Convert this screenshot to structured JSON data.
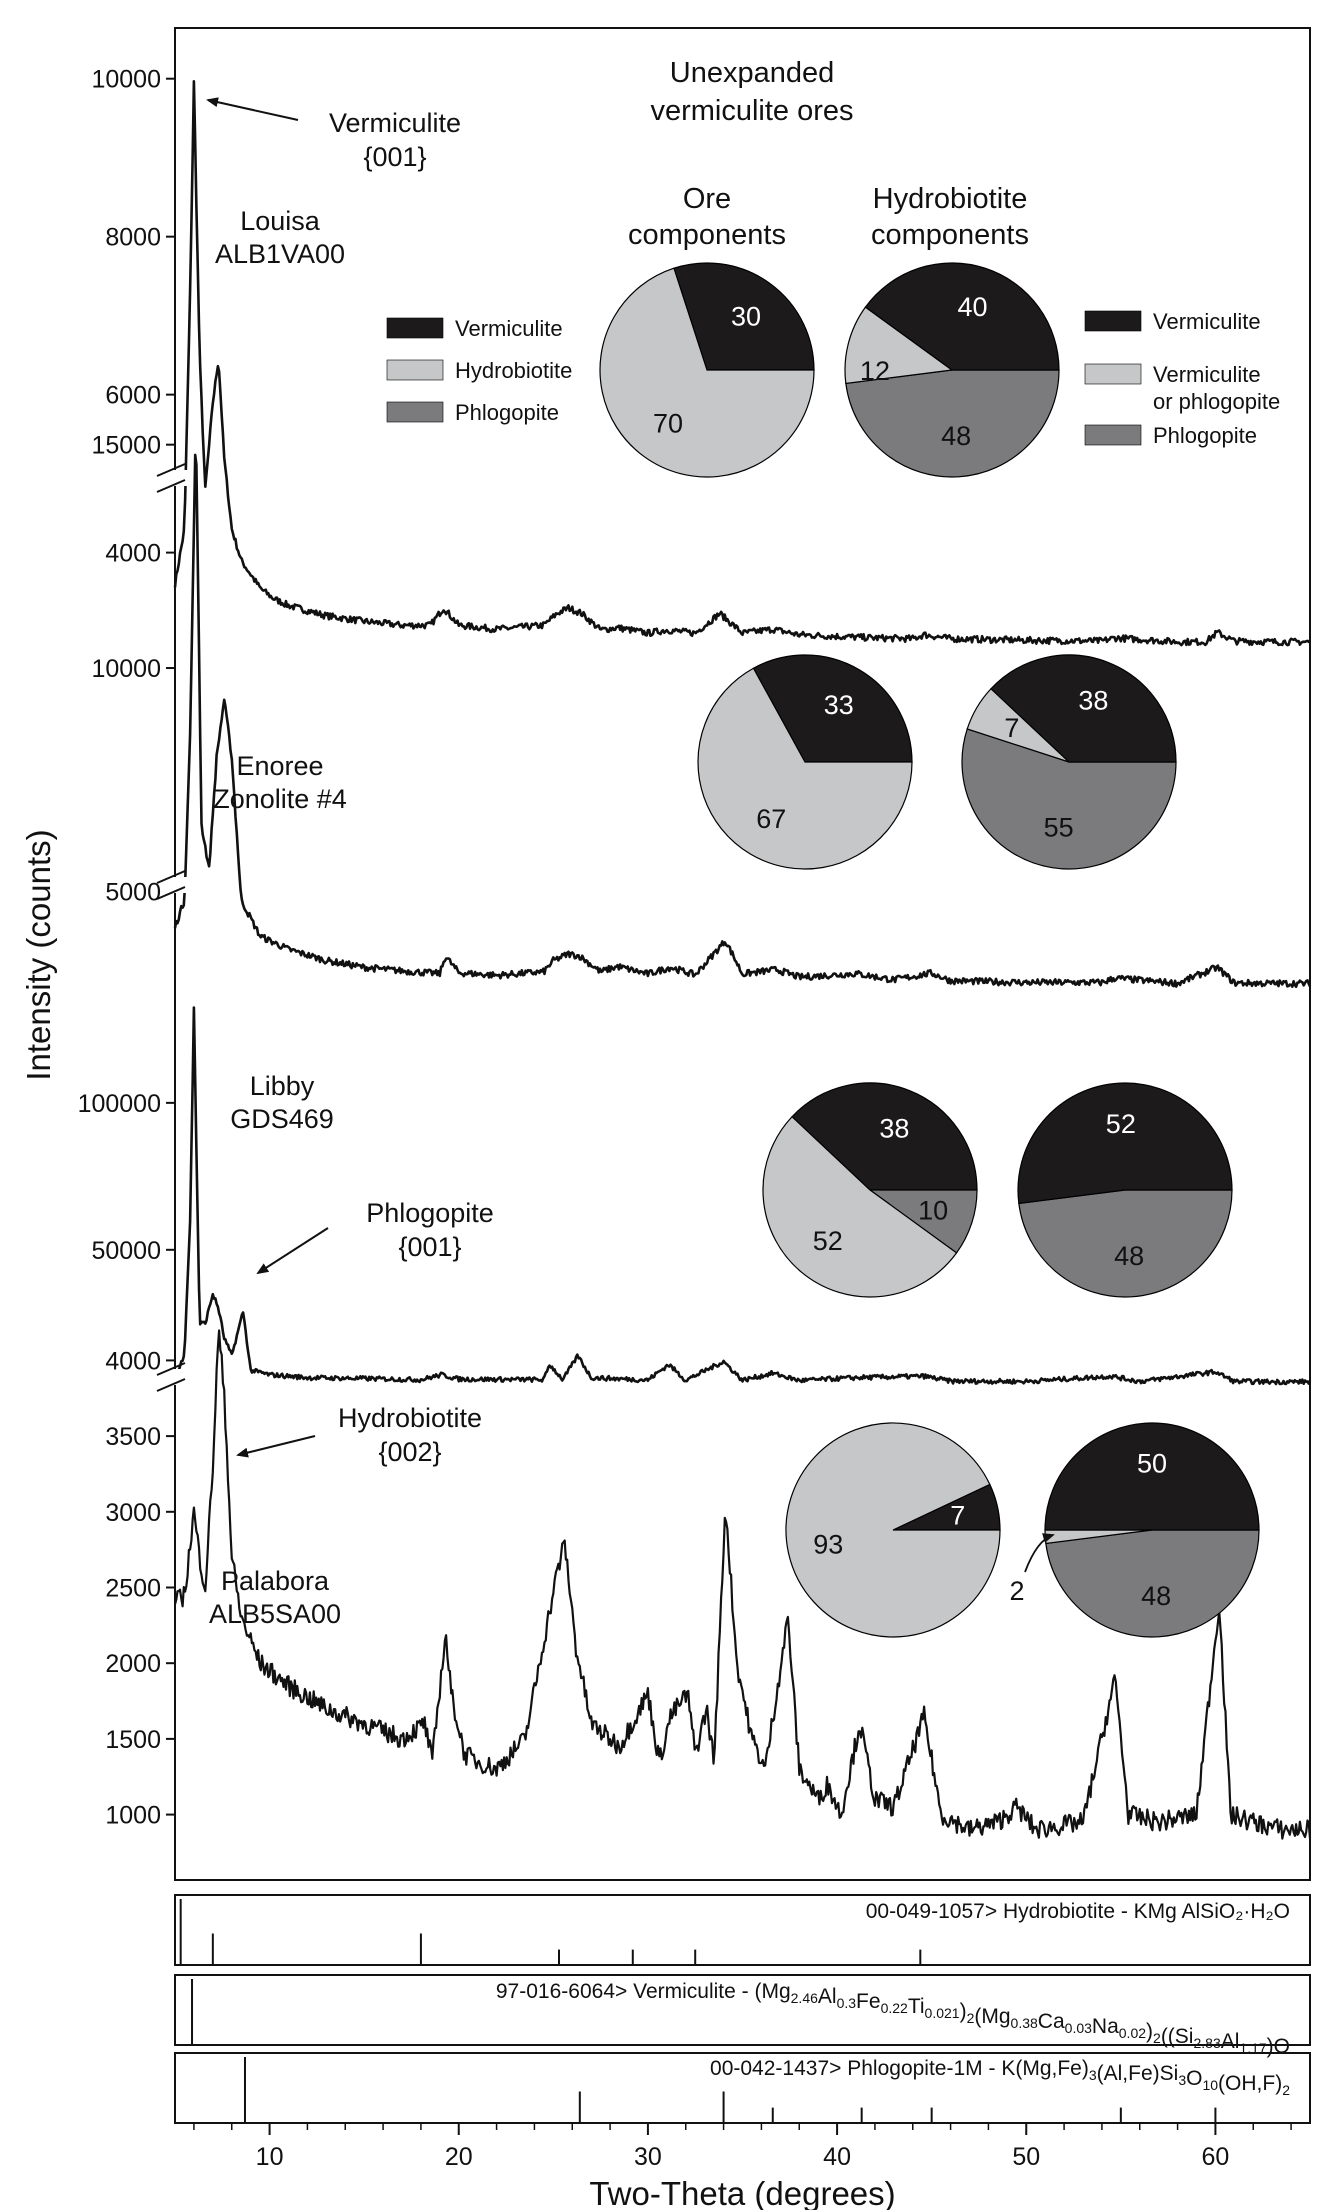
{
  "title": [
    "Unexpanded",
    "vermiculite ores"
  ],
  "colors": {
    "vermiculite": "#1c1a1b",
    "hydrobiotite": "#c6c7c9",
    "phlogopite": "#7b7b7d",
    "line": "#111111"
  },
  "chart_data": {
    "type": "line",
    "xlabel": "Two-Theta (degrees)",
    "ylabel": "Intensity (counts)",
    "xlim": [
      5,
      65
    ],
    "xticks": [
      10,
      20,
      30,
      40,
      50,
      60
    ],
    "panels": [
      {
        "name": "Louisa ALB1VA00",
        "label": [
          "Louisa",
          "ALB1VA00"
        ],
        "ylim": [
          3400,
          10300
        ],
        "yticks": [
          4000,
          6000,
          8000,
          10000
        ],
        "x": [
          5,
          5.5,
          5.8,
          6.0,
          6.3,
          6.6,
          7.0,
          7.3,
          7.6,
          8.0,
          8.5,
          9.5,
          10.2,
          11,
          13,
          15,
          17,
          18.5,
          19.2,
          20,
          22,
          24.5,
          25.2,
          25.8,
          26.5,
          27.5,
          28.4,
          30,
          31,
          32.5,
          33.8,
          35,
          36.6,
          38,
          40,
          42,
          44,
          44.6,
          46,
          50,
          54,
          54.7,
          58,
          59.5,
          60.1,
          61,
          63,
          65
        ],
        "y": [
          3600,
          4300,
          7300,
          9950,
          6500,
          4800,
          5900,
          6450,
          5200,
          4300,
          3900,
          3550,
          3420,
          3330,
          3200,
          3130,
          3080,
          3080,
          3300,
          3080,
          3030,
          3080,
          3230,
          3300,
          3230,
          3020,
          3050,
          2980,
          3020,
          2980,
          3230,
          2980,
          3030,
          2960,
          2940,
          2920,
          2910,
          2960,
          2910,
          2890,
          2880,
          2920,
          2870,
          2870,
          2990,
          2880,
          2870,
          2870
        ]
      },
      {
        "name": "Enoree Zonolite #4",
        "label": [
          "Enoree",
          "Zonolite #4"
        ],
        "ylim": [
          3800,
          16000
        ],
        "yticks": [
          5000,
          10000,
          15000
        ],
        "x": [
          5,
          5.5,
          5.8,
          6.1,
          6.4,
          6.8,
          7.2,
          7.6,
          8.0,
          8.5,
          9.5,
          11,
          13,
          15,
          17,
          19,
          19.3,
          20,
          22,
          24.5,
          25,
          25.8,
          26.4,
          27.5,
          28.4,
          30,
          31.2,
          32.5,
          34.1,
          35,
          36.8,
          38,
          41,
          43,
          45,
          46,
          50,
          54,
          54.7,
          58,
          60.1,
          61,
          63,
          65
        ],
        "y": [
          4200,
          4800,
          8500,
          15500,
          6500,
          5500,
          8000,
          9300,
          8000,
          4800,
          4000,
          3700,
          3450,
          3300,
          3220,
          3160,
          3550,
          3180,
          3120,
          3200,
          3450,
          3600,
          3550,
          3200,
          3320,
          3150,
          3300,
          3130,
          3900,
          3150,
          3250,
          3080,
          3160,
          3020,
          3170,
          3000,
          2960,
          2960,
          3060,
          2940,
          3300,
          2950,
          2940,
          2940
        ]
      },
      {
        "name": "Libby GDS469",
        "label": [
          "Libby",
          "GDS469"
        ],
        "ylim": [
          4000,
          135000
        ],
        "yticks": [
          50000,
          100000
        ],
        "x": [
          5,
          5.5,
          5.8,
          6.0,
          6.3,
          6.6,
          7.0,
          7.3,
          7.6,
          8.0,
          8.6,
          9.0,
          10,
          12,
          15,
          18,
          19.1,
          20,
          24.5,
          24.8,
          25.5,
          26.3,
          27,
          30,
          31.1,
          32,
          34.0,
          35,
          36.6,
          38,
          41,
          44.6,
          46,
          50,
          54.5,
          56,
          60,
          61,
          63,
          65
        ],
        "y": [
          5000,
          15000,
          60000,
          132000,
          25000,
          25000,
          35000,
          30000,
          20000,
          14000,
          29000,
          9000,
          7500,
          6500,
          6200,
          5800,
          7500,
          6000,
          5800,
          11000,
          5800,
          14000,
          6500,
          5700,
          11000,
          5600,
          12000,
          5600,
          8000,
          5500,
          6500,
          7000,
          5300,
          5200,
          7000,
          5200,
          8500,
          5200,
          5100,
          5100
        ]
      },
      {
        "name": "Palabora ALB5SA00",
        "label": [
          "Palabora",
          "ALB5SA00"
        ],
        "ylim": [
          700,
          4300
        ],
        "yticks": [
          1000,
          1500,
          2000,
          2500,
          3000,
          3500,
          4000
        ],
        "x": [
          5,
          5.5,
          6.0,
          6.3,
          6.6,
          7.0,
          7.3,
          7.6,
          8.0,
          8.5,
          9.5,
          11,
          13,
          15,
          17,
          18.2,
          18.6,
          19.3,
          19.6,
          20.3,
          21,
          22,
          23.5,
          25.2,
          25.6,
          26.2,
          27,
          28.5,
          30.0,
          30.6,
          31.2,
          32.1,
          32.5,
          33.1,
          33.5,
          34.1,
          34.7,
          35.5,
          36.2,
          37.4,
          38,
          39,
          39.5,
          40.2,
          41.2,
          42,
          43,
          44.6,
          45.5,
          47,
          48.5,
          49.5,
          50.5,
          53,
          54.7,
          55.4,
          57,
          59,
          60.2,
          60.8,
          62,
          63.5,
          65
        ],
        "y": [
          2400,
          2450,
          3000,
          2700,
          2500,
          3300,
          4200,
          3800,
          2700,
          2300,
          2000,
          1850,
          1700,
          1600,
          1500,
          1600,
          1350,
          2200,
          1800,
          1400,
          1350,
          1300,
          1500,
          2600,
          2800,
          2100,
          1600,
          1450,
          1800,
          1350,
          1650,
          1800,
          1400,
          1700,
          1350,
          3050,
          2000,
          1500,
          1300,
          2300,
          1300,
          1100,
          1200,
          1000,
          1600,
          1100,
          1050,
          1650,
          1000,
          900,
          950,
          1050,
          900,
          950,
          1900,
          1000,
          950,
          1000,
          2400,
          1000,
          950,
          900,
          900
        ]
      }
    ],
    "references": [
      {
        "code": "00-049-1057>",
        "text": "Hydrobiotite - KMg AlSiO₂·H₂O",
        "x": [
          5.3,
          7.0,
          18.0,
          25.3,
          29.2,
          32.5,
          44.4
        ]
      },
      {
        "code": "97-016-6064>",
        "text": "Vermiculite - (Mg2.46Al0.3Fe0.22Ti0.021)2(Mg0.38Ca0.03Na0.02)2((Si2.83Al1.17)O",
        "x": [
          5.9
        ]
      },
      {
        "code": "00-042-1437>",
        "text": "Phlogopite-1M - K(Mg,Fe)3(Al,Fe)Si3O10(OH,F)2",
        "x": [
          8.7,
          26.4,
          34.0,
          36.6,
          41.3,
          45.0,
          55.0,
          60.0
        ]
      }
    ],
    "annotations": [
      {
        "text": [
          "Vermiculite",
          "{001}"
        ],
        "x": 6.0
      },
      {
        "text": [
          "Phlogopite",
          "{001}"
        ],
        "x": 8.7
      },
      {
        "text": [
          "Hydrobiotite",
          "{002}"
        ],
        "x": 7.3
      }
    ],
    "pies": [
      {
        "title": [
          "Ore",
          "components"
        ],
        "labels": [
          "Vermiculite",
          "Hydrobiotite",
          "Phlogopite"
        ],
        "samples": [
          {
            "values": [
              30,
              70,
              0
            ],
            "labels": [
              "30",
              "70",
              ""
            ]
          },
          {
            "values": [
              33,
              67,
              0
            ],
            "labels": [
              "33",
              "67",
              ""
            ]
          },
          {
            "values": [
              38,
              52,
              10
            ],
            "labels": [
              "38",
              "52",
              "10"
            ]
          },
          {
            "values": [
              7,
              93,
              0
            ],
            "labels": [
              "7",
              "93",
              ""
            ]
          }
        ]
      },
      {
        "title": [
          "Hydrobiotite",
          "components"
        ],
        "labels": [
          "Vermiculite",
          "Vermiculite or phlogopite",
          "Phlogopite"
        ],
        "samples": [
          {
            "values": [
              40,
              12,
              48
            ],
            "labels": [
              "40",
              "12",
              "48"
            ]
          },
          {
            "values": [
              38,
              7,
              55
            ],
            "labels": [
              "38",
              "7",
              "55"
            ]
          },
          {
            "values": [
              52,
              0,
              48
            ],
            "labels": [
              "52",
              "",
              "48"
            ]
          },
          {
            "values": [
              50,
              2,
              48
            ],
            "labels": [
              "50",
              "2",
              "48"
            ]
          }
        ]
      }
    ],
    "legend_left": [
      "Vermiculite",
      "Hydrobiotite",
      "Phlogopite"
    ],
    "legend_right": [
      [
        "Vermiculite"
      ],
      [
        "Vermiculite",
        "or phlogopite"
      ],
      [
        "Phlogopite"
      ]
    ]
  }
}
